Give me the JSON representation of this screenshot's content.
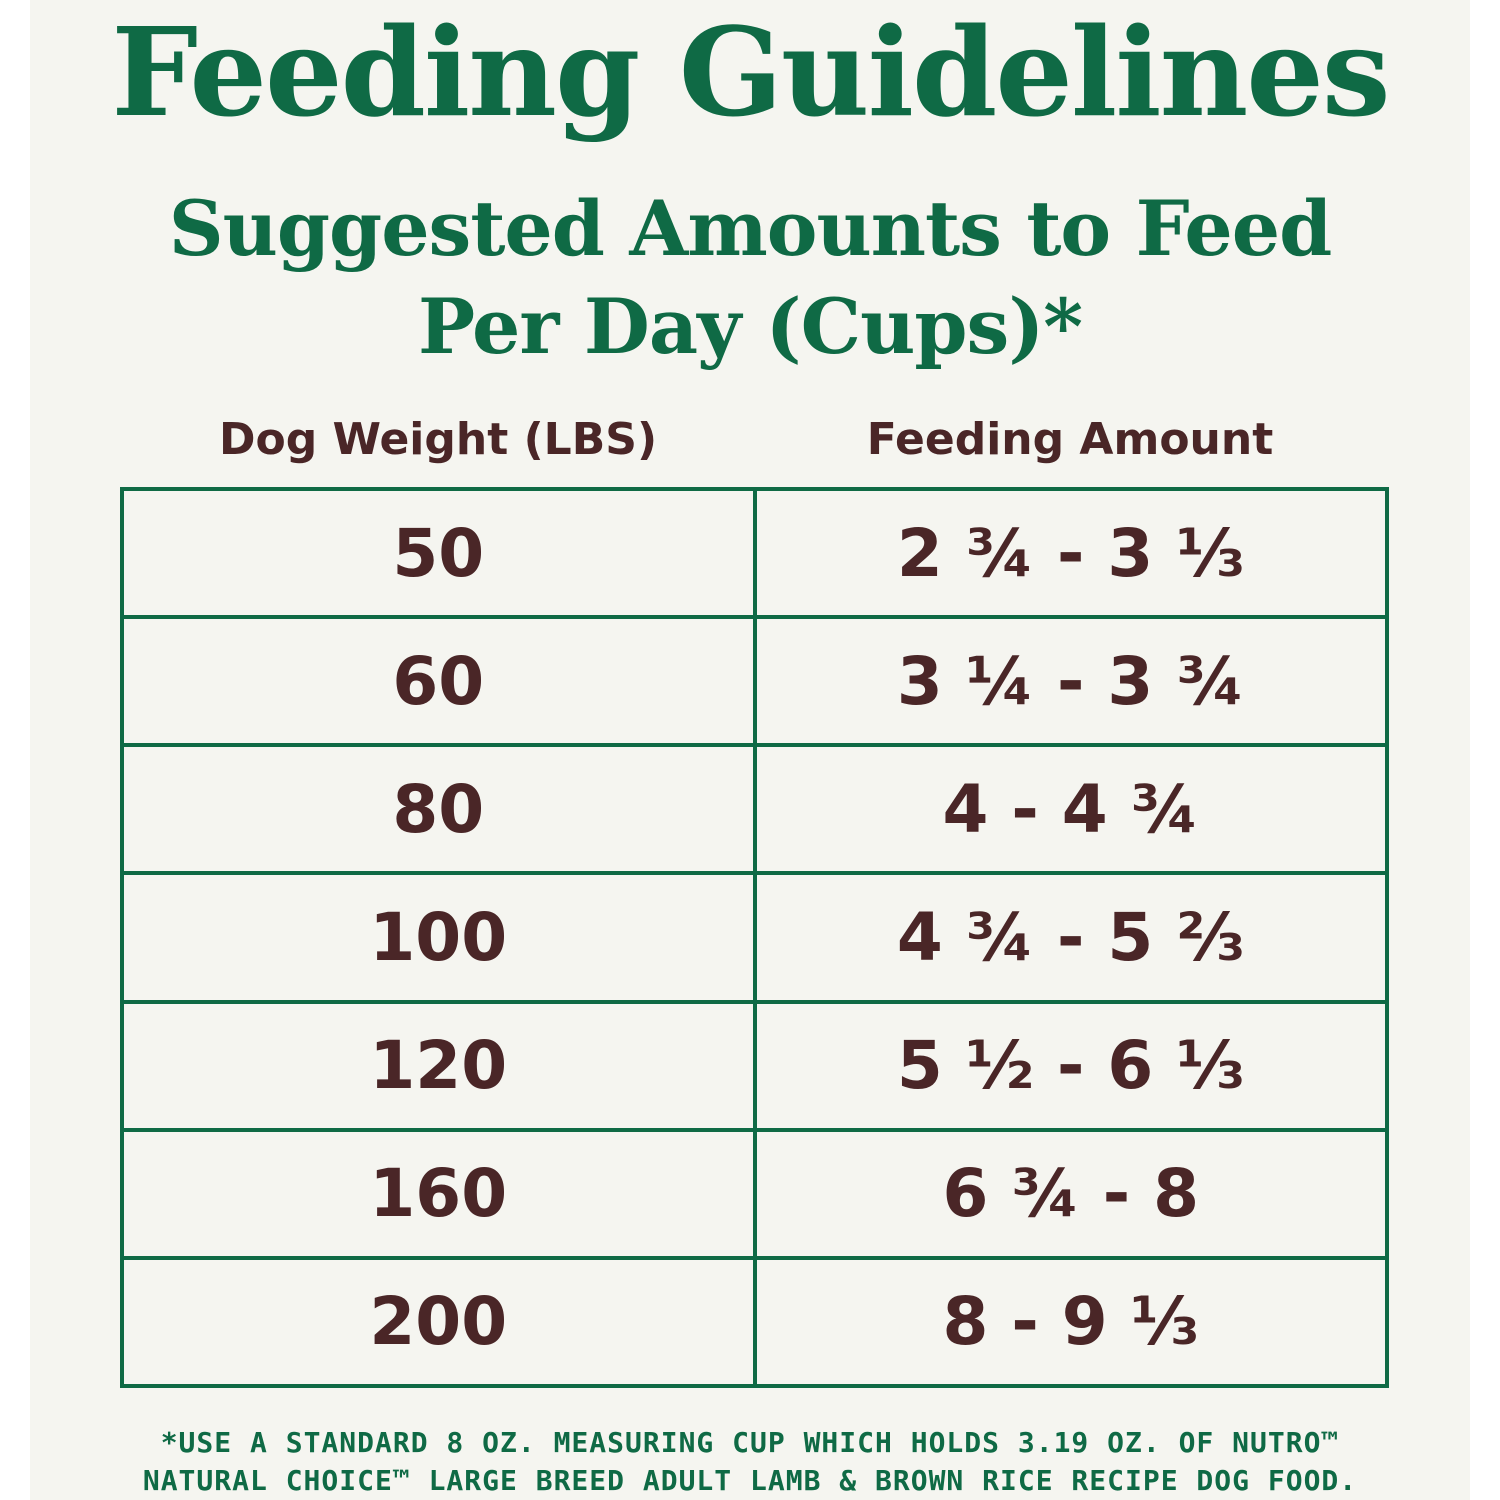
{
  "title": "Feeding Guidelines",
  "subtitle": {
    "line1": "Suggested Amounts to Feed",
    "line2": "Per Day (Cups)*"
  },
  "table": {
    "headers": {
      "weight": "Dog Weight (LBS)",
      "amount": "Feeding Amount"
    },
    "rows": [
      {
        "weight": "50",
        "amount": "2 ¾ - 3 ⅓"
      },
      {
        "weight": "60",
        "amount": "3 ¼ - 3 ¾"
      },
      {
        "weight": "80",
        "amount": "4 - 4 ¾"
      },
      {
        "weight": "100",
        "amount": "4 ¾ - 5 ⅔"
      },
      {
        "weight": "120",
        "amount": "5 ½ - 6 ⅓"
      },
      {
        "weight": "160",
        "amount": "6 ¾ - 8"
      },
      {
        "weight": "200",
        "amount": "8 - 9 ⅓"
      }
    ]
  },
  "footnote": {
    "line1": "*USE A STANDARD 8 OZ. MEASURING CUP WHICH HOLDS 3.19 OZ. OF NUTRO™",
    "line2": "NATURAL CHOICE™ LARGE BREED ADULT LAMB & BROWN RICE RECIPE DOG FOOD."
  },
  "colors": {
    "green": "#0f6a45",
    "brown": "#4a2627",
    "background": "#f5f5f0"
  }
}
